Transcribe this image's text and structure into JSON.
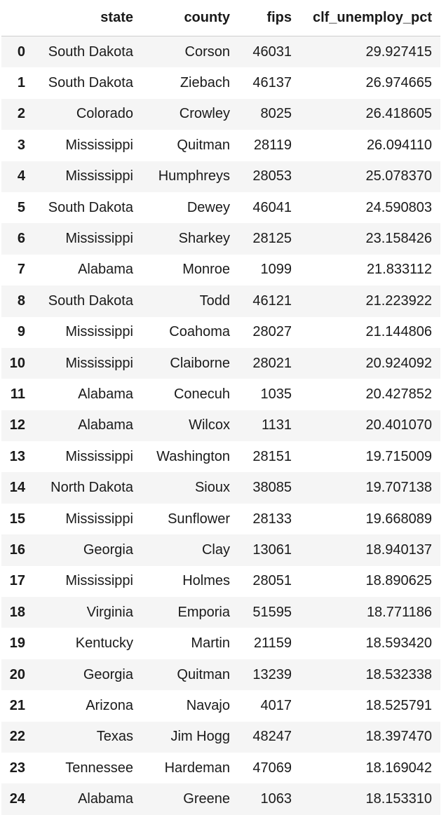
{
  "table": {
    "columns": [
      "",
      "state",
      "county",
      "fips",
      "clf_unemploy_pct"
    ],
    "rows": [
      {
        "index": "0",
        "state": "South Dakota",
        "county": "Corson",
        "fips": "46031",
        "clf_unemploy_pct": "29.927415"
      },
      {
        "index": "1",
        "state": "South Dakota",
        "county": "Ziebach",
        "fips": "46137",
        "clf_unemploy_pct": "26.974665"
      },
      {
        "index": "2",
        "state": "Colorado",
        "county": "Crowley",
        "fips": "8025",
        "clf_unemploy_pct": "26.418605"
      },
      {
        "index": "3",
        "state": "Mississippi",
        "county": "Quitman",
        "fips": "28119",
        "clf_unemploy_pct": "26.094110"
      },
      {
        "index": "4",
        "state": "Mississippi",
        "county": "Humphreys",
        "fips": "28053",
        "clf_unemploy_pct": "25.078370"
      },
      {
        "index": "5",
        "state": "South Dakota",
        "county": "Dewey",
        "fips": "46041",
        "clf_unemploy_pct": "24.590803"
      },
      {
        "index": "6",
        "state": "Mississippi",
        "county": "Sharkey",
        "fips": "28125",
        "clf_unemploy_pct": "23.158426"
      },
      {
        "index": "7",
        "state": "Alabama",
        "county": "Monroe",
        "fips": "1099",
        "clf_unemploy_pct": "21.833112"
      },
      {
        "index": "8",
        "state": "South Dakota",
        "county": "Todd",
        "fips": "46121",
        "clf_unemploy_pct": "21.223922"
      },
      {
        "index": "9",
        "state": "Mississippi",
        "county": "Coahoma",
        "fips": "28027",
        "clf_unemploy_pct": "21.144806"
      },
      {
        "index": "10",
        "state": "Mississippi",
        "county": "Claiborne",
        "fips": "28021",
        "clf_unemploy_pct": "20.924092"
      },
      {
        "index": "11",
        "state": "Alabama",
        "county": "Conecuh",
        "fips": "1035",
        "clf_unemploy_pct": "20.427852"
      },
      {
        "index": "12",
        "state": "Alabama",
        "county": "Wilcox",
        "fips": "1131",
        "clf_unemploy_pct": "20.401070"
      },
      {
        "index": "13",
        "state": "Mississippi",
        "county": "Washington",
        "fips": "28151",
        "clf_unemploy_pct": "19.715009"
      },
      {
        "index": "14",
        "state": "North Dakota",
        "county": "Sioux",
        "fips": "38085",
        "clf_unemploy_pct": "19.707138"
      },
      {
        "index": "15",
        "state": "Mississippi",
        "county": "Sunflower",
        "fips": "28133",
        "clf_unemploy_pct": "19.668089"
      },
      {
        "index": "16",
        "state": "Georgia",
        "county": "Clay",
        "fips": "13061",
        "clf_unemploy_pct": "18.940137"
      },
      {
        "index": "17",
        "state": "Mississippi",
        "county": "Holmes",
        "fips": "28051",
        "clf_unemploy_pct": "18.890625"
      },
      {
        "index": "18",
        "state": "Virginia",
        "county": "Emporia",
        "fips": "51595",
        "clf_unemploy_pct": "18.771186"
      },
      {
        "index": "19",
        "state": "Kentucky",
        "county": "Martin",
        "fips": "21159",
        "clf_unemploy_pct": "18.593420"
      },
      {
        "index": "20",
        "state": "Georgia",
        "county": "Quitman",
        "fips": "13239",
        "clf_unemploy_pct": "18.532338"
      },
      {
        "index": "21",
        "state": "Arizona",
        "county": "Navajo",
        "fips": "4017",
        "clf_unemploy_pct": "18.525791"
      },
      {
        "index": "22",
        "state": "Texas",
        "county": "Jim Hogg",
        "fips": "48247",
        "clf_unemploy_pct": "18.397470"
      },
      {
        "index": "23",
        "state": "Tennessee",
        "county": "Hardeman",
        "fips": "47069",
        "clf_unemploy_pct": "18.169042"
      },
      {
        "index": "24",
        "state": "Alabama",
        "county": "Greene",
        "fips": "1063",
        "clf_unemploy_pct": "18.153310"
      }
    ]
  }
}
